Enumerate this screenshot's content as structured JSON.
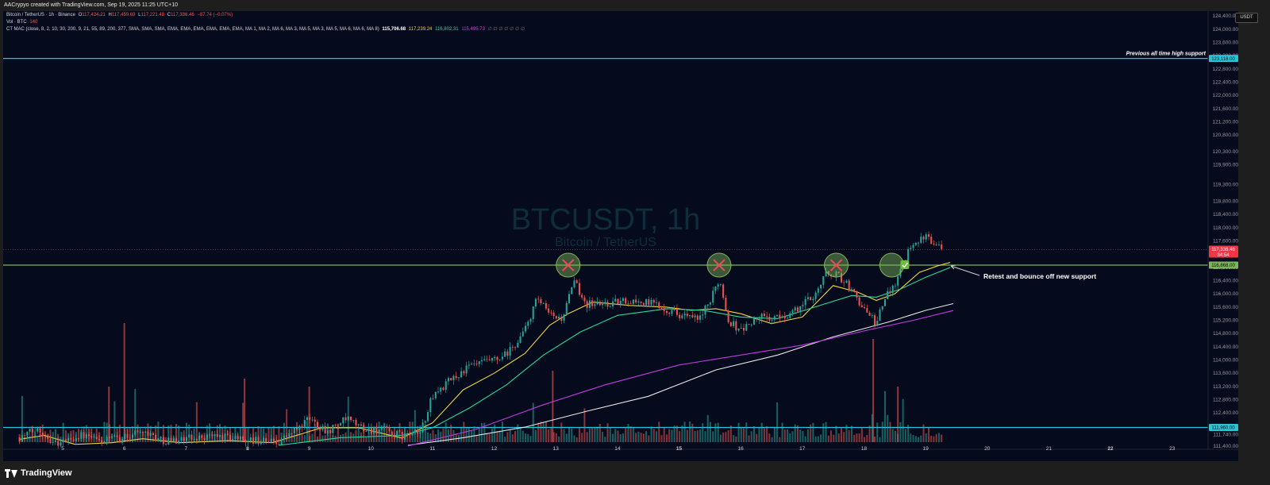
{
  "credit": "AACrypyo created with TradingView.com, Sep 19, 2025 11:25 UTC+10",
  "legend": {
    "symbol": "Bitcoin / TetherUS · 1h · Binance",
    "o_label": "O",
    "o": "117,424.21",
    "h_label": "H",
    "h": "117,459.69",
    "l_label": "L",
    "l": "117,221.48",
    "c_label": "C",
    "c": "117,336.46",
    "change": "−87.74 (−0.07%)",
    "vol_label": "Vol · BTC",
    "vol": "140",
    "ind_label": "CT MAC (close, 8, 2, 10, 30, 200, 9, 21, 55, 89, 200, 377, SMA, SMA, SMA, EMA, EMA, EMA, EMA, EMA, EMA, MA 1, MA 2, MA 6, MA 3, MA 5, MA 3, MA 5, MA 6, MA 6, MA 8)",
    "ind_values": [
      "115,706.68",
      "117,239.24",
      "116,802.31",
      "115,495.73"
    ],
    "ind_colors": [
      "#ffffff",
      "#f2d33a",
      "#26d99a",
      "#d63bd6"
    ]
  },
  "currency": "USDT",
  "watermark": {
    "title": "BTCUSDT, 1h",
    "subtitle": "Bitcoin / TetherUS"
  },
  "footer": {
    "brand": "TradingView"
  },
  "colors": {
    "up": "#26a69a",
    "down": "#ef5350",
    "ma_yellow": "#f2d33a",
    "ma_green": "#26d99a",
    "ma_white": "#e6e6e6",
    "ma_purple": "#c23be0",
    "support_line": "#7fb55a",
    "cyan_line": "#29c4d6"
  },
  "chart_data": {
    "type": "candlestick",
    "timeframe": "1h",
    "yticks": [
      124400,
      124000,
      123600,
      123200,
      122800,
      122400,
      122000,
      121600,
      121200,
      120800,
      120300,
      119900,
      119300,
      118800,
      118400,
      118000,
      117600,
      117200,
      116800,
      116400,
      116000,
      115600,
      115200,
      114800,
      114400,
      114000,
      113600,
      113200,
      112800,
      112400,
      112000,
      111740,
      111400
    ],
    "xticks": [
      {
        "label": "5",
        "bold": false
      },
      {
        "label": "6",
        "bold": false
      },
      {
        "label": "7",
        "bold": false
      },
      {
        "label": "8",
        "bold": true
      },
      {
        "label": "9",
        "bold": false
      },
      {
        "label": "10",
        "bold": false
      },
      {
        "label": "11",
        "bold": false
      },
      {
        "label": "12",
        "bold": false
      },
      {
        "label": "13",
        "bold": false
      },
      {
        "label": "14",
        "bold": false
      },
      {
        "label": "15",
        "bold": true
      },
      {
        "label": "16",
        "bold": false
      },
      {
        "label": "17",
        "bold": false
      },
      {
        "label": "18",
        "bold": false
      },
      {
        "label": "19",
        "bold": false
      },
      {
        "label": "20",
        "bold": false
      },
      {
        "label": "21",
        "bold": false
      },
      {
        "label": "22",
        "bold": true
      },
      {
        "label": "23",
        "bold": false
      }
    ],
    "ylim": [
      111300,
      124550
    ],
    "path": [
      [
        4.3,
        111660
      ],
      [
        4.6,
        111900
      ],
      [
        4.9,
        111480
      ],
      [
        5.3,
        111720
      ],
      [
        5.6,
        111550
      ],
      [
        6.0,
        111650
      ],
      [
        6.3,
        111900
      ],
      [
        6.6,
        111560
      ],
      [
        7.0,
        111600
      ],
      [
        7.4,
        111700
      ],
      [
        7.8,
        111650
      ],
      [
        8.1,
        111560
      ],
      [
        8.5,
        111540
      ],
      [
        8.8,
        111900
      ],
      [
        9.0,
        112220
      ],
      [
        9.3,
        111860
      ],
      [
        9.6,
        112200
      ],
      [
        9.9,
        111900
      ],
      [
        10.2,
        111880
      ],
      [
        10.5,
        111700
      ],
      [
        10.8,
        111800
      ],
      [
        11.0,
        112900
      ],
      [
        11.3,
        113400
      ],
      [
        11.6,
        113800
      ],
      [
        11.9,
        113950
      ],
      [
        12.1,
        114000
      ],
      [
        12.3,
        114350
      ],
      [
        12.5,
        114900
      ],
      [
        12.7,
        115850
      ],
      [
        12.9,
        115350
      ],
      [
        13.1,
        115250
      ],
      [
        13.3,
        116350
      ],
      [
        13.5,
        115700
      ],
      [
        13.8,
        115700
      ],
      [
        14.2,
        115800
      ],
      [
        14.6,
        115700
      ],
      [
        15.0,
        115400
      ],
      [
        15.3,
        115200
      ],
      [
        15.5,
        115700
      ],
      [
        15.65,
        116500
      ],
      [
        15.8,
        115200
      ],
      [
        16.0,
        114900
      ],
      [
        16.3,
        115300
      ],
      [
        16.6,
        115250
      ],
      [
        16.9,
        115500
      ],
      [
        17.2,
        116000
      ],
      [
        17.4,
        116650
      ],
      [
        17.6,
        116550
      ],
      [
        17.8,
        116100
      ],
      [
        17.95,
        115700
      ],
      [
        18.1,
        115300
      ],
      [
        18.2,
        115100
      ],
      [
        18.35,
        115900
      ],
      [
        18.55,
        116500
      ],
      [
        18.75,
        117500
      ],
      [
        18.95,
        117700
      ],
      [
        19.15,
        117600
      ],
      [
        19.3,
        117340
      ]
    ],
    "moving_averages": [
      {
        "color_key": "ma_yellow",
        "points": [
          [
            4.3,
            111600
          ],
          [
            4.7,
            111720
          ],
          [
            5.2,
            111450
          ],
          [
            5.8,
            111500
          ],
          [
            6.3,
            111620
          ],
          [
            6.9,
            111500
          ],
          [
            7.7,
            111560
          ],
          [
            8.4,
            111500
          ],
          [
            9.2,
            111950
          ],
          [
            9.8,
            111950
          ],
          [
            10.5,
            111640
          ],
          [
            11.0,
            112100
          ],
          [
            11.5,
            113100
          ],
          [
            12.0,
            113600
          ],
          [
            12.5,
            114200
          ],
          [
            12.9,
            115050
          ],
          [
            13.2,
            115400
          ],
          [
            13.6,
            115750
          ],
          [
            14.2,
            115650
          ],
          [
            14.8,
            115600
          ],
          [
            15.2,
            115500
          ],
          [
            15.6,
            115550
          ],
          [
            16.0,
            115400
          ],
          [
            16.5,
            115100
          ],
          [
            17.0,
            115300
          ],
          [
            17.5,
            116250
          ],
          [
            17.9,
            116050
          ],
          [
            18.2,
            115800
          ],
          [
            18.5,
            116000
          ],
          [
            18.9,
            116650
          ],
          [
            19.2,
            116850
          ],
          [
            19.4,
            116950
          ]
        ]
      },
      {
        "color_key": "ma_green",
        "points": [
          [
            8.5,
            111420
          ],
          [
            9.5,
            111650
          ],
          [
            10.5,
            111720
          ],
          [
            11.0,
            111950
          ],
          [
            11.6,
            112550
          ],
          [
            12.2,
            113250
          ],
          [
            12.8,
            114150
          ],
          [
            13.4,
            114850
          ],
          [
            14.0,
            115350
          ],
          [
            14.8,
            115550
          ],
          [
            15.4,
            115500
          ],
          [
            16.0,
            115300
          ],
          [
            16.6,
            115250
          ],
          [
            17.2,
            115600
          ],
          [
            17.8,
            115950
          ],
          [
            18.2,
            115900
          ],
          [
            18.6,
            116150
          ],
          [
            19.0,
            116500
          ],
          [
            19.4,
            116800
          ]
        ]
      },
      {
        "color_key": "ma_white",
        "points": [
          [
            10.6,
            111420
          ],
          [
            11.5,
            111650
          ],
          [
            12.5,
            111970
          ],
          [
            13.5,
            112450
          ],
          [
            14.5,
            112900
          ],
          [
            15.6,
            113700
          ],
          [
            16.6,
            114150
          ],
          [
            17.5,
            114700
          ],
          [
            18.4,
            115150
          ],
          [
            19.0,
            115500
          ],
          [
            19.45,
            115705
          ]
        ]
      },
      {
        "color_key": "ma_purple",
        "points": [
          [
            10.6,
            111400
          ],
          [
            11.7,
            111900
          ],
          [
            12.8,
            112650
          ],
          [
            13.8,
            113250
          ],
          [
            15.0,
            113850
          ],
          [
            16.0,
            114150
          ],
          [
            17.0,
            114450
          ],
          [
            18.0,
            114880
          ],
          [
            18.8,
            115200
          ],
          [
            19.45,
            115495
          ]
        ]
      }
    ],
    "horizontal_lines": [
      {
        "price": 123118,
        "color_key": "cyan_line",
        "label": "123,118.00"
      },
      {
        "price": 116868,
        "color_key": "support_line",
        "label": "116,868.00"
      },
      {
        "price": 111960,
        "color_key": "cyan_line",
        "label": "111,960.00"
      }
    ],
    "last_price": {
      "price": 117336.46,
      "label": "117,336.46",
      "countdown": "34:54"
    },
    "annotations": {
      "resistance_rejections": [
        {
          "day": 13.2,
          "price": 116868
        },
        {
          "day": 15.65,
          "price": 116868
        },
        {
          "day": 17.55,
          "price": 116868
        }
      ],
      "support_confirmation": {
        "day": 18.45,
        "price": 116868
      },
      "text_ath": "Previous all time high support",
      "text_retest": "Retest and bounce off new support"
    }
  }
}
